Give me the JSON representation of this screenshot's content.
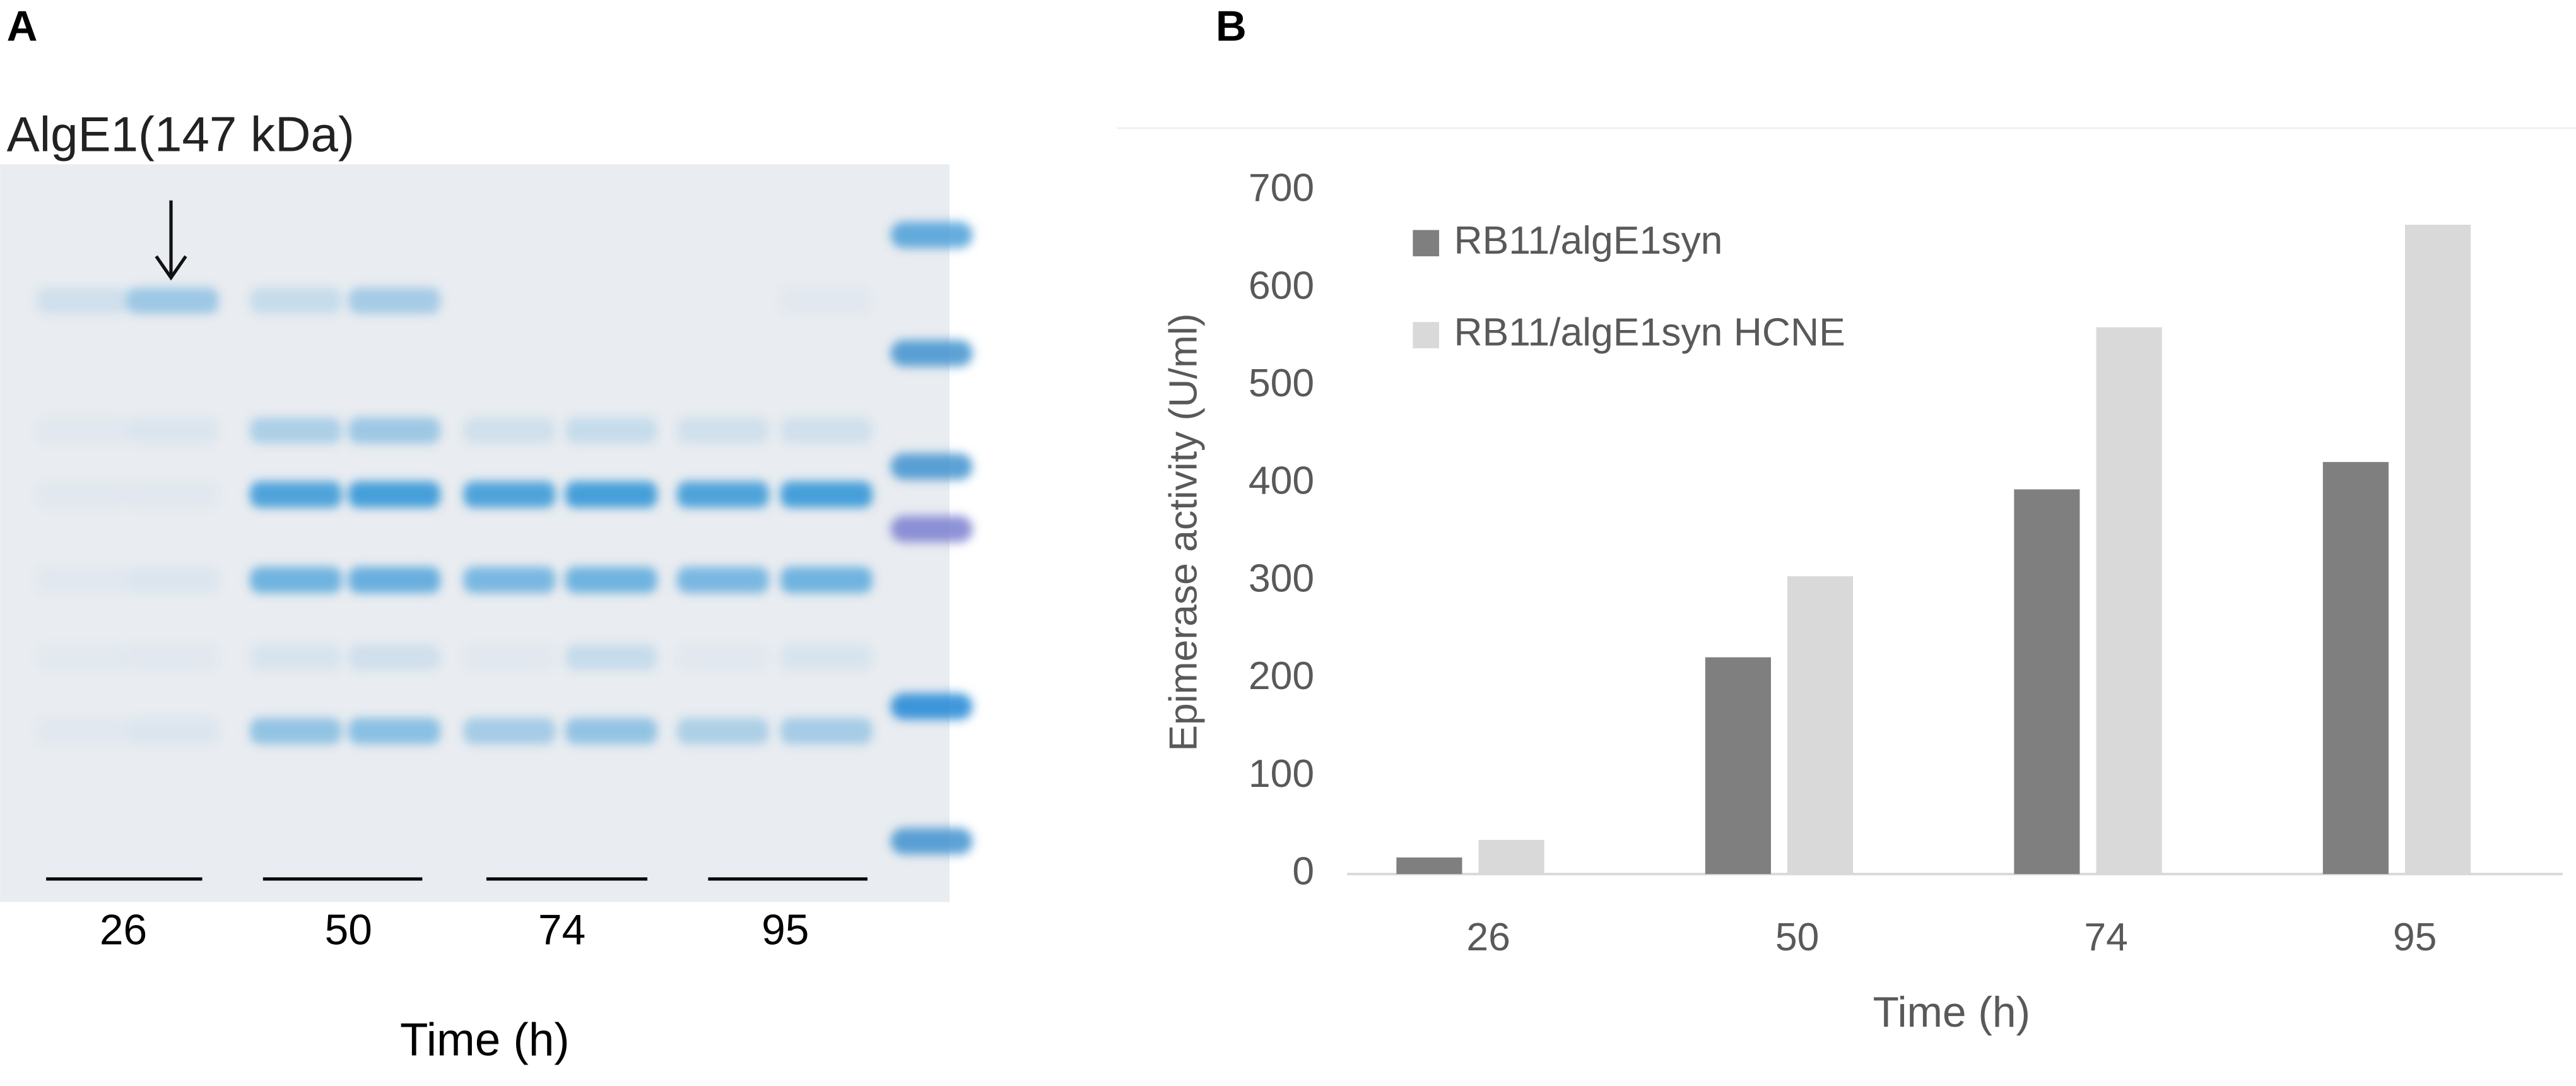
{
  "panel_a": {
    "label": "A",
    "title": "AlgE1(147 kDa)",
    "lane_labels": [
      "26",
      "50",
      "74",
      "95"
    ],
    "x_label": "Time (h)"
  },
  "chart_data": {
    "type": "bar",
    "panel_label": "B",
    "categories": [
      "26",
      "50",
      "74",
      "95"
    ],
    "series": [
      {
        "name": "RB11/algE1syn",
        "color": "#7f7f7f",
        "values": [
          17,
          222,
          394,
          422
        ]
      },
      {
        "name": "RB11/algE1syn HCNE",
        "color": "#d9d9d9",
        "values": [
          35,
          305,
          560,
          665
        ]
      }
    ],
    "x_label": "Time (h)",
    "y_label": "Epimerase activity (U/ml)",
    "ylim": [
      0,
      700
    ],
    "yticks": [
      0,
      100,
      200,
      300,
      400,
      500,
      600,
      700
    ],
    "legend": "top-left"
  }
}
